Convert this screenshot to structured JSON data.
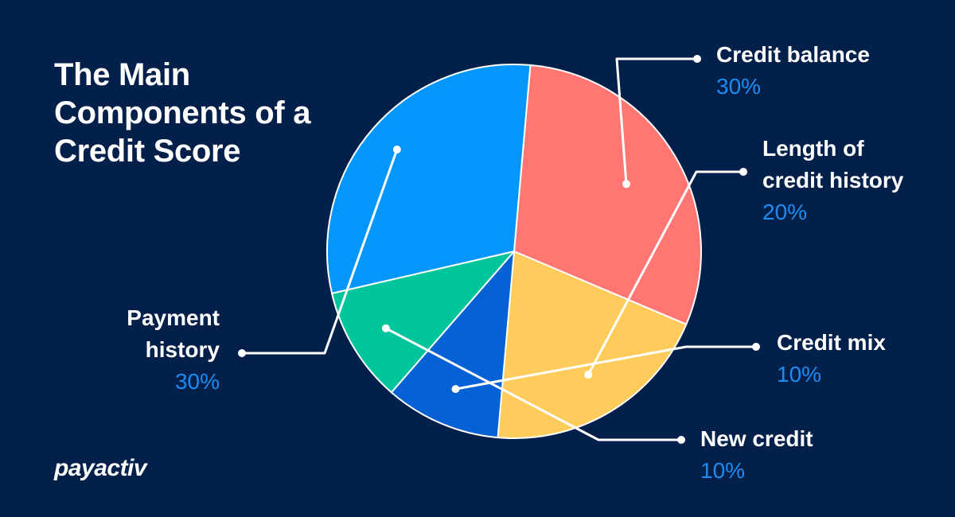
{
  "title": "The Main Components of a Credit Score",
  "logo": "payactiv",
  "colors": {
    "background": "#03204a",
    "percent_text": "#1d8cf0",
    "leader_line": "#ffffff"
  },
  "chart_data": {
    "type": "pie",
    "title": "The Main Components of a Credit Score",
    "slices": [
      {
        "label": "Credit balance",
        "value": 30,
        "percent_label": "30%",
        "color": "#ff7672"
      },
      {
        "label": "Length of credit history",
        "label_lines": [
          "Length of",
          "credit history"
        ],
        "value": 20,
        "percent_label": "20%",
        "color": "#ffcb5b"
      },
      {
        "label": "Credit mix",
        "value": 10,
        "percent_label": "10%",
        "color": "#0561d4"
      },
      {
        "label": "New credit",
        "value": 10,
        "percent_label": "10%",
        "color": "#00c49b"
      },
      {
        "label": "Payment history",
        "label_lines": [
          "Payment",
          "history"
        ],
        "value": 30,
        "percent_label": "30%",
        "color": "#0496fa"
      }
    ]
  }
}
